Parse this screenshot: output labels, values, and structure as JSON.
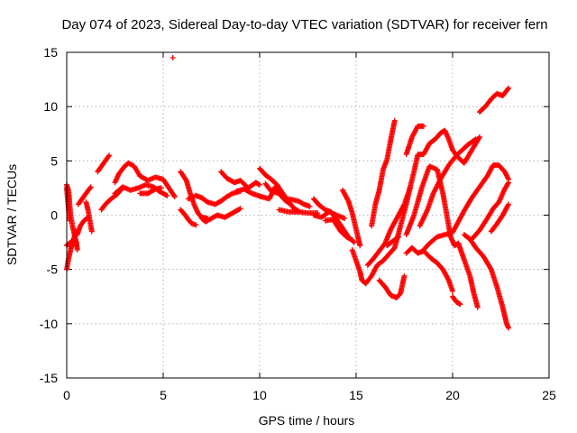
{
  "chart_data": {
    "type": "scatter",
    "title": "Day 074 of 2023, Sidereal Day-to-day VTEC variation (SDTVAR) for receiver fern",
    "xlabel": "GPS time / hours",
    "ylabel": "SDTVAR / TECUs",
    "xlim": [
      0,
      25
    ],
    "ylim": [
      -15,
      15
    ],
    "xticks": [
      "0",
      "5",
      "10",
      "15",
      "20",
      "25"
    ],
    "yticks": [
      "-15",
      "-10",
      "-5",
      "0",
      "5",
      "10",
      "15"
    ],
    "grid": true,
    "marker": "+",
    "color": "#ff0000",
    "series": [
      {
        "points": [
          [
            0.0,
            2.8
          ],
          [
            0.1,
            2.2
          ],
          [
            0.15,
            1.0
          ],
          [
            0.2,
            0.0
          ],
          [
            0.3,
            -1.0
          ],
          [
            0.4,
            -1.8
          ],
          [
            0.5,
            -2.5
          ],
          [
            0.55,
            -3.2
          ]
        ]
      },
      {
        "points": [
          [
            0.0,
            -5.0
          ],
          [
            0.1,
            -4.0
          ],
          [
            0.2,
            -3.2
          ],
          [
            0.3,
            -2.5
          ],
          [
            0.4,
            -2.0
          ],
          [
            0.5,
            -1.5
          ]
        ]
      },
      {
        "points": [
          [
            0.0,
            -2.8
          ],
          [
            0.2,
            -2.5
          ],
          [
            0.4,
            -2.2
          ],
          [
            0.5,
            -2.8
          ]
        ]
      },
      {
        "points": [
          [
            0.0,
            2.5
          ],
          [
            0.05,
            1.5
          ],
          [
            0.1,
            0.5
          ],
          [
            0.15,
            -0.5
          ]
        ]
      },
      {
        "points": [
          [
            0.55,
            -1.8
          ],
          [
            0.7,
            -1.0
          ],
          [
            0.9,
            -0.5
          ],
          [
            1.1,
            -0.2
          ]
        ]
      },
      {
        "points": [
          [
            0.6,
            1.0
          ],
          [
            0.8,
            1.5
          ],
          [
            1.0,
            2.0
          ],
          [
            1.25,
            2.6
          ]
        ]
      },
      {
        "points": [
          [
            1.0,
            1.2
          ],
          [
            1.1,
            0.5
          ],
          [
            1.2,
            -0.5
          ],
          [
            1.3,
            -1.5
          ]
        ]
      },
      {
        "points": [
          [
            1.6,
            4.0
          ],
          [
            1.8,
            4.5
          ],
          [
            2.0,
            5.0
          ],
          [
            2.2,
            5.5
          ]
        ]
      },
      {
        "points": [
          [
            1.8,
            0.5
          ],
          [
            2.0,
            1.0
          ],
          [
            2.3,
            1.5
          ],
          [
            2.6,
            1.9
          ],
          [
            2.9,
            2.5
          ]
        ]
      },
      {
        "points": [
          [
            2.5,
            3.0
          ],
          [
            2.7,
            3.8
          ],
          [
            3.0,
            4.5
          ],
          [
            3.2,
            4.8
          ],
          [
            3.5,
            4.5
          ],
          [
            3.8,
            3.6
          ],
          [
            4.2,
            3.2
          ],
          [
            4.6,
            3.5
          ],
          [
            5.0,
            3.3
          ],
          [
            5.3,
            2.5
          ],
          [
            5.6,
            1.7
          ]
        ]
      },
      {
        "points": [
          [
            2.5,
            2.0
          ],
          [
            2.9,
            2.6
          ],
          [
            3.3,
            2.3
          ],
          [
            3.7,
            2.5
          ],
          [
            4.1,
            2.8
          ],
          [
            4.5,
            2.6
          ],
          [
            4.8,
            2.2
          ],
          [
            5.2,
            1.8
          ]
        ]
      },
      {
        "points": [
          [
            3.8,
            2.0
          ],
          [
            4.2,
            2.0
          ],
          [
            4.6,
            2.4
          ],
          [
            4.9,
            2.5
          ]
        ]
      },
      {
        "points": [
          [
            5.5,
            14.5
          ]
        ]
      },
      {
        "points": [
          [
            5.9,
            4.0
          ],
          [
            6.2,
            3.2
          ],
          [
            6.4,
            2.0
          ],
          [
            6.6,
            1.0
          ],
          [
            6.8,
            0.2
          ],
          [
            7.0,
            -0.2
          ],
          [
            7.3,
            -0.3
          ]
        ]
      },
      {
        "points": [
          [
            5.9,
            0.5
          ],
          [
            6.1,
            0.1
          ],
          [
            6.3,
            -0.4
          ],
          [
            6.5,
            -0.8
          ],
          [
            6.7,
            -0.9
          ]
        ]
      },
      {
        "points": [
          [
            6.3,
            1.5
          ],
          [
            6.7,
            1.8
          ],
          [
            7.0,
            1.6
          ],
          [
            7.3,
            1.2
          ],
          [
            7.7,
            1.0
          ],
          [
            8.0,
            1.3
          ],
          [
            8.3,
            1.7
          ],
          [
            8.6,
            2.0
          ],
          [
            9.0,
            2.2
          ]
        ]
      },
      {
        "points": [
          [
            7.0,
            -0.3
          ],
          [
            7.2,
            -0.6
          ],
          [
            7.5,
            -0.3
          ],
          [
            7.8,
            0.0
          ],
          [
            8.2,
            -0.2
          ],
          [
            8.6,
            0.2
          ],
          [
            9.0,
            0.6
          ]
        ]
      },
      {
        "points": [
          [
            8.0,
            4.0
          ],
          [
            8.3,
            3.4
          ],
          [
            8.7,
            3.0
          ],
          [
            9.0,
            3.2
          ],
          [
            9.4,
            2.5
          ],
          [
            9.8,
            3.0
          ],
          [
            10.0,
            2.8
          ]
        ]
      },
      {
        "points": [
          [
            8.8,
            2.2
          ],
          [
            9.2,
            2.4
          ],
          [
            9.6,
            2.0
          ],
          [
            10.1,
            1.7
          ],
          [
            10.5,
            1.5
          ],
          [
            10.8,
            2.6
          ],
          [
            11.0,
            2.0
          ]
        ]
      },
      {
        "points": [
          [
            10.0,
            4.3
          ],
          [
            10.3,
            3.7
          ],
          [
            10.6,
            3.3
          ],
          [
            10.9,
            2.8
          ],
          [
            11.2,
            2.0
          ],
          [
            11.5,
            1.2
          ],
          [
            11.8,
            0.6
          ],
          [
            12.0,
            0.4
          ]
        ]
      },
      {
        "points": [
          [
            10.3,
            2.9
          ],
          [
            10.6,
            2.2
          ],
          [
            11.0,
            2.0
          ],
          [
            11.3,
            1.4
          ],
          [
            11.6,
            1.0
          ]
        ]
      },
      {
        "points": [
          [
            11.0,
            0.5
          ],
          [
            11.5,
            0.3
          ],
          [
            12.0,
            0.3
          ],
          [
            12.5,
            0.2
          ],
          [
            13.0,
            0.2
          ]
        ]
      },
      {
        "points": [
          [
            11.5,
            1.5
          ],
          [
            12.0,
            1.3
          ],
          [
            12.3,
            1.0
          ],
          [
            12.6,
            0.8
          ]
        ]
      },
      {
        "points": [
          [
            12.8,
            1.5
          ],
          [
            13.1,
            0.9
          ],
          [
            13.4,
            0.5
          ],
          [
            13.7,
            0.3
          ],
          [
            14.0,
            -0.4
          ],
          [
            14.3,
            -1.2
          ],
          [
            14.6,
            -2.0
          ],
          [
            14.9,
            -2.5
          ]
        ]
      },
      {
        "points": [
          [
            12.8,
            0.0
          ],
          [
            13.2,
            -0.2
          ],
          [
            13.6,
            0.3
          ],
          [
            14.0,
            0.0
          ],
          [
            14.4,
            -0.3
          ]
        ]
      },
      {
        "points": [
          [
            13.4,
            -0.5
          ],
          [
            13.8,
            -0.4
          ],
          [
            14.2,
            -1.5
          ],
          [
            14.5,
            -2.0
          ],
          [
            14.8,
            -2.3
          ]
        ]
      },
      {
        "points": [
          [
            14.3,
            2.3
          ],
          [
            14.6,
            1.3
          ],
          [
            14.8,
            0.2
          ],
          [
            15.0,
            -1.3
          ],
          [
            15.2,
            -2.8
          ]
        ]
      },
      {
        "points": [
          [
            14.8,
            -3.2
          ],
          [
            15.0,
            -4.2
          ],
          [
            15.2,
            -5.2
          ],
          [
            15.3,
            -6.0
          ],
          [
            15.5,
            -6.3
          ],
          [
            15.8,
            -5.6
          ],
          [
            16.1,
            -4.6
          ],
          [
            16.4,
            -4.2
          ],
          [
            16.7,
            -3.6
          ],
          [
            17.0,
            -3.0
          ],
          [
            17.3,
            -1.0
          ],
          [
            17.6,
            1.0
          ],
          [
            17.8,
            2.6
          ],
          [
            18.0,
            4.0
          ],
          [
            18.2,
            5.6
          ],
          [
            18.5,
            5.6
          ],
          [
            18.8,
            6.6
          ],
          [
            19.1,
            7.0
          ],
          [
            19.4,
            7.6
          ],
          [
            19.6,
            7.8
          ],
          [
            19.8,
            7.0
          ],
          [
            20.0,
            6.0
          ],
          [
            20.3,
            5.3
          ],
          [
            20.6,
            4.8
          ],
          [
            20.9,
            5.7
          ],
          [
            21.2,
            6.6
          ],
          [
            21.4,
            7.2
          ]
        ]
      },
      {
        "points": [
          [
            15.8,
            -1.0
          ],
          [
            16.0,
            1.0
          ],
          [
            16.2,
            2.3
          ],
          [
            16.4,
            4.2
          ],
          [
            16.6,
            5.1
          ],
          [
            16.8,
            7.0
          ],
          [
            17.0,
            8.7
          ]
        ]
      },
      {
        "points": [
          [
            16.2,
            -6.0
          ],
          [
            16.5,
            -6.6
          ],
          [
            16.8,
            -7.4
          ],
          [
            17.1,
            -7.6
          ],
          [
            17.3,
            -7.2
          ],
          [
            17.5,
            -5.6
          ]
        ]
      },
      {
        "points": [
          [
            15.6,
            -4.6
          ],
          [
            15.9,
            -4.0
          ],
          [
            16.2,
            -3.3
          ],
          [
            16.5,
            -2.6
          ],
          [
            16.8,
            -1.3
          ],
          [
            17.2,
            0.0
          ],
          [
            17.5,
            1.0
          ],
          [
            17.8,
            2.5
          ]
        ]
      },
      {
        "points": [
          [
            16.6,
            -2.8
          ],
          [
            16.9,
            -2.4
          ],
          [
            17.2,
            -2.0
          ]
        ]
      },
      {
        "points": [
          [
            17.6,
            5.6
          ],
          [
            17.9,
            7.2
          ],
          [
            18.2,
            8.2
          ],
          [
            18.5,
            8.2
          ]
        ]
      },
      {
        "points": [
          [
            17.6,
            -3.5
          ],
          [
            17.9,
            -3.0
          ],
          [
            18.2,
            -3.5
          ],
          [
            18.5,
            -3.3
          ],
          [
            18.9,
            -4.0
          ],
          [
            19.2,
            -4.4
          ],
          [
            19.5,
            -5.0
          ],
          [
            19.8,
            -6.0
          ],
          [
            20.0,
            -7.0
          ]
        ]
      },
      {
        "points": [
          [
            17.6,
            -1.8
          ],
          [
            18.0,
            0.0
          ],
          [
            18.4,
            2.5
          ],
          [
            18.8,
            4.5
          ],
          [
            19.2,
            4.2
          ],
          [
            19.5,
            2.0
          ],
          [
            19.7,
            0.0
          ],
          [
            19.9,
            -2.0
          ],
          [
            20.1,
            -2.8
          ],
          [
            20.3,
            -2.6
          ]
        ]
      },
      {
        "points": [
          [
            18.4,
            -3.4
          ],
          [
            18.8,
            -2.6
          ],
          [
            19.2,
            -2.0
          ],
          [
            19.6,
            -1.8
          ],
          [
            20.0,
            -1.6
          ],
          [
            20.3,
            -0.6
          ],
          [
            20.6,
            0.4
          ],
          [
            21.0,
            1.6
          ],
          [
            21.4,
            2.6
          ],
          [
            21.8,
            3.6
          ],
          [
            22.1,
            4.6
          ],
          [
            22.4,
            4.6
          ],
          [
            22.7,
            4.0
          ],
          [
            22.9,
            3.3
          ]
        ]
      },
      {
        "points": [
          [
            18.3,
            -1.0
          ],
          [
            18.7,
            0.5
          ],
          [
            19.0,
            2.0
          ],
          [
            19.4,
            3.4
          ],
          [
            19.8,
            4.6
          ],
          [
            20.2,
            5.5
          ],
          [
            20.5,
            6.0
          ],
          [
            20.8,
            6.5
          ],
          [
            21.2,
            7.0
          ]
        ]
      },
      {
        "points": [
          [
            20.0,
            -7.5
          ],
          [
            20.2,
            -8.0
          ],
          [
            20.4,
            -8.2
          ]
        ]
      },
      {
        "points": [
          [
            20.3,
            -2.6
          ],
          [
            20.5,
            -3.6
          ],
          [
            20.7,
            -4.6
          ],
          [
            20.9,
            -5.6
          ],
          [
            21.1,
            -7.2
          ],
          [
            21.3,
            -8.5
          ]
        ]
      },
      {
        "points": [
          [
            20.6,
            -1.8
          ],
          [
            20.9,
            -2.2
          ],
          [
            21.2,
            -3.0
          ],
          [
            21.6,
            -3.8
          ],
          [
            22.0,
            -5.0
          ],
          [
            22.3,
            -6.6
          ],
          [
            22.6,
            -8.5
          ],
          [
            22.8,
            -10.0
          ],
          [
            22.9,
            -10.4
          ]
        ]
      },
      {
        "points": [
          [
            21.0,
            -2.2
          ],
          [
            21.4,
            -1.4
          ],
          [
            21.8,
            -0.3
          ],
          [
            22.1,
            0.6
          ],
          [
            22.4,
            1.2
          ],
          [
            22.7,
            2.4
          ],
          [
            22.9,
            3.0
          ]
        ]
      },
      {
        "points": [
          [
            21.4,
            9.5
          ],
          [
            21.7,
            10.0
          ],
          [
            22.0,
            10.7
          ],
          [
            22.3,
            11.2
          ],
          [
            22.6,
            11.0
          ],
          [
            22.9,
            11.7
          ]
        ]
      },
      {
        "points": [
          [
            22.0,
            -1.5
          ],
          [
            22.3,
            -0.8
          ],
          [
            22.6,
            0.0
          ],
          [
            22.9,
            1.0
          ]
        ]
      }
    ]
  }
}
